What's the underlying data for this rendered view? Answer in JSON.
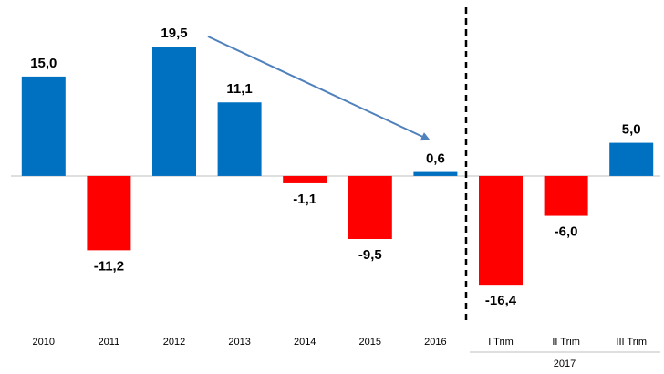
{
  "chart_data": {
    "type": "bar",
    "categories": [
      "2010",
      "2011",
      "2012",
      "2013",
      "2014",
      "2015",
      "2016",
      "I Trim",
      "II Trim",
      "III Trim"
    ],
    "values": [
      15.0,
      -11.2,
      19.5,
      11.1,
      -1.1,
      -9.5,
      0.6,
      -16.4,
      -6.0,
      5.0
    ],
    "value_labels": [
      "15,0",
      "-11,2",
      "19,5",
      "11,1",
      "-1,1",
      "-9,5",
      "0,6",
      "-16,4",
      "-6,0",
      "5,0"
    ],
    "colors": [
      "#0070c0",
      "#ff0000",
      "#0070c0",
      "#0070c0",
      "#ff0000",
      "#ff0000",
      "#0070c0",
      "#ff0000",
      "#ff0000",
      "#0070c0"
    ],
    "group_label": "2017",
    "ylim": [
      -21,
      25
    ]
  }
}
